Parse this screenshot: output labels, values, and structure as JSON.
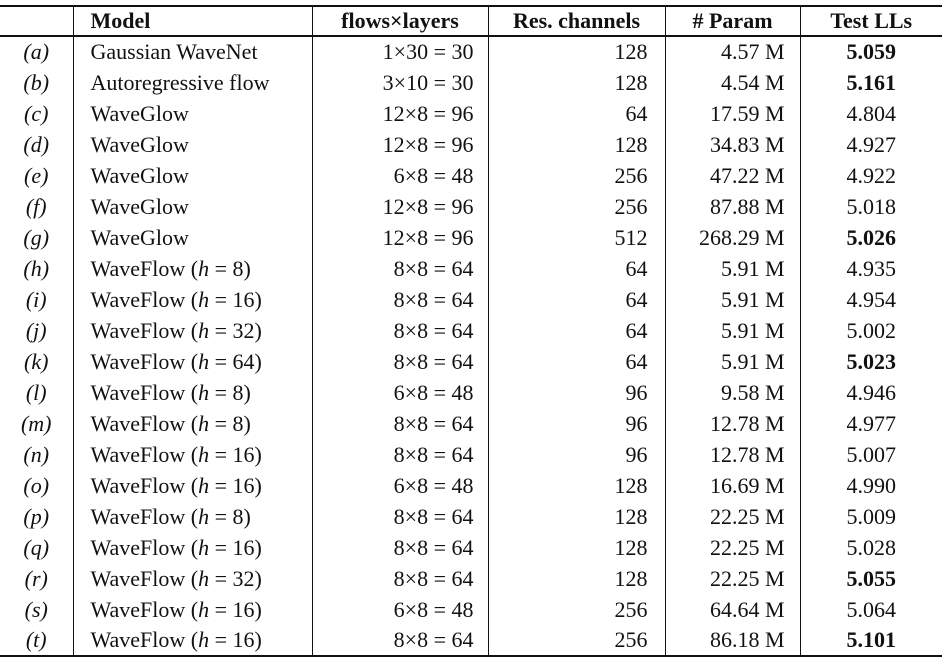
{
  "table": {
    "headers": {
      "label": "",
      "model": "Model",
      "flows": "flows×layers",
      "res_channels": "Res. channels",
      "param": "# Param",
      "test_lls": "Test LLs"
    },
    "rows": [
      {
        "label": "(a)",
        "model_pre": "Gaussian WaveNet",
        "model_var": "",
        "model_post": "",
        "flows": "1×30 = 30",
        "res_channels": "128",
        "param": "4.57 M",
        "test_ll": "5.059",
        "bold": true
      },
      {
        "label": "(b)",
        "model_pre": "Autoregressive flow",
        "model_var": "",
        "model_post": "",
        "flows": "3×10 = 30",
        "res_channels": "128",
        "param": "4.54 M",
        "test_ll": "5.161",
        "bold": true
      },
      {
        "label": "(c)",
        "model_pre": "WaveGlow",
        "model_var": "",
        "model_post": "",
        "flows": "12×8 = 96",
        "res_channels": "64",
        "param": "17.59 M",
        "test_ll": "4.804",
        "bold": false
      },
      {
        "label": "(d)",
        "model_pre": "WaveGlow",
        "model_var": "",
        "model_post": "",
        "flows": "12×8 = 96",
        "res_channels": "128",
        "param": "34.83 M",
        "test_ll": "4.927",
        "bold": false
      },
      {
        "label": "(e)",
        "model_pre": "WaveGlow",
        "model_var": "",
        "model_post": "",
        "flows": "6×8 = 48",
        "res_channels": "256",
        "param": "47.22 M",
        "test_ll": "4.922",
        "bold": false
      },
      {
        "label": "(f)",
        "model_pre": "WaveGlow",
        "model_var": "",
        "model_post": "",
        "flows": "12×8 = 96",
        "res_channels": "256",
        "param": "87.88 M",
        "test_ll": "5.018",
        "bold": false
      },
      {
        "label": "(g)",
        "model_pre": "WaveGlow",
        "model_var": "",
        "model_post": "",
        "flows": "12×8 = 96",
        "res_channels": "512",
        "param": "268.29 M",
        "test_ll": "5.026",
        "bold": true
      },
      {
        "label": "(h)",
        "model_pre": "WaveFlow (",
        "model_var": "h",
        "model_post": " = 8)",
        "flows": "8×8 = 64",
        "res_channels": "64",
        "param": "5.91 M",
        "test_ll": "4.935",
        "bold": false
      },
      {
        "label": "(i)",
        "model_pre": "WaveFlow (",
        "model_var": "h",
        "model_post": " = 16)",
        "flows": "8×8 = 64",
        "res_channels": "64",
        "param": "5.91 M",
        "test_ll": "4.954",
        "bold": false
      },
      {
        "label": "(j)",
        "model_pre": "WaveFlow (",
        "model_var": "h",
        "model_post": " = 32)",
        "flows": "8×8 = 64",
        "res_channels": "64",
        "param": "5.91 M",
        "test_ll": "5.002",
        "bold": false
      },
      {
        "label": "(k)",
        "model_pre": "WaveFlow (",
        "model_var": "h",
        "model_post": " = 64)",
        "flows": "8×8 = 64",
        "res_channels": "64",
        "param": "5.91 M",
        "test_ll": "5.023",
        "bold": true
      },
      {
        "label": "(l)",
        "model_pre": "WaveFlow (",
        "model_var": "h",
        "model_post": " = 8)",
        "flows": "6×8 = 48",
        "res_channels": "96",
        "param": "9.58 M",
        "test_ll": "4.946",
        "bold": false
      },
      {
        "label": "(m)",
        "model_pre": "WaveFlow (",
        "model_var": "h",
        "model_post": " = 8)",
        "flows": "8×8 = 64",
        "res_channels": "96",
        "param": "12.78 M",
        "test_ll": "4.977",
        "bold": false
      },
      {
        "label": "(n)",
        "model_pre": "WaveFlow (",
        "model_var": "h",
        "model_post": " = 16)",
        "flows": "8×8 = 64",
        "res_channels": "96",
        "param": "12.78 M",
        "test_ll": "5.007",
        "bold": false
      },
      {
        "label": "(o)",
        "model_pre": "WaveFlow (",
        "model_var": "h",
        "model_post": " = 16)",
        "flows": "6×8 = 48",
        "res_channels": "128",
        "param": "16.69 M",
        "test_ll": "4.990",
        "bold": false
      },
      {
        "label": "(p)",
        "model_pre": "WaveFlow (",
        "model_var": "h",
        "model_post": " = 8)",
        "flows": "8×8 = 64",
        "res_channels": "128",
        "param": "22.25 M",
        "test_ll": "5.009",
        "bold": false
      },
      {
        "label": "(q)",
        "model_pre": "WaveFlow (",
        "model_var": "h",
        "model_post": " = 16)",
        "flows": "8×8 = 64",
        "res_channels": "128",
        "param": "22.25 M",
        "test_ll": "5.028",
        "bold": false
      },
      {
        "label": "(r)",
        "model_pre": "WaveFlow (",
        "model_var": "h",
        "model_post": " = 32)",
        "flows": "8×8 = 64",
        "res_channels": "128",
        "param": "22.25 M",
        "test_ll": "5.055",
        "bold": true
      },
      {
        "label": "(s)",
        "model_pre": "WaveFlow (",
        "model_var": "h",
        "model_post": " = 16)",
        "flows": "6×8 = 48",
        "res_channels": "256",
        "param": "64.64 M",
        "test_ll": "5.064",
        "bold": false
      },
      {
        "label": "(t)",
        "model_pre": "WaveFlow (",
        "model_var": "h",
        "model_post": " = 16)",
        "flows": "8×8 = 64",
        "res_channels": "256",
        "param": "86.18 M",
        "test_ll": "5.101",
        "bold": true
      }
    ]
  }
}
